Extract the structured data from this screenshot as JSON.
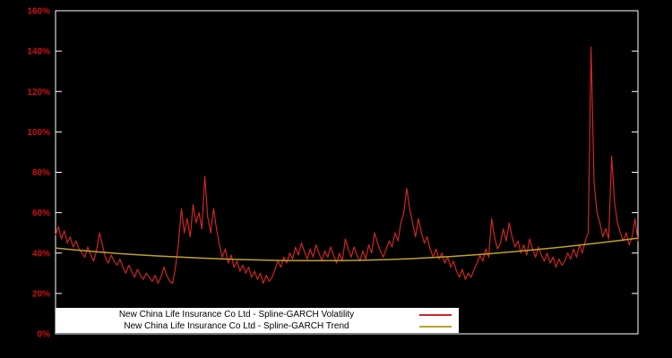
{
  "chart_data": {
    "type": "line",
    "title": "",
    "xlabel": "",
    "ylabel": "",
    "ylim": [
      0,
      160
    ],
    "grid": false,
    "legend_position": "bottom-left-inside",
    "background_color": "#000000",
    "border_color": "#ffffff",
    "tick_label_color": "#cc1111",
    "yticks": [
      {
        "value": 0,
        "label": "0%"
      },
      {
        "value": 20,
        "label": "20%"
      },
      {
        "value": 40,
        "label": "40%"
      },
      {
        "value": 60,
        "label": "60%"
      },
      {
        "value": 80,
        "label": "80%"
      },
      {
        "value": 100,
        "label": "100%"
      },
      {
        "value": 120,
        "label": "120%"
      },
      {
        "value": 140,
        "label": "140%"
      },
      {
        "value": 160,
        "label": "160%"
      }
    ],
    "series": [
      {
        "name": "New China Life Insurance Co Ltd - Spline-GARCH Volatility",
        "color": "#cd2626",
        "unit": "%",
        "values": [
          49,
          53,
          47,
          51,
          45,
          48,
          43,
          46,
          42,
          40,
          38,
          43,
          39,
          36,
          41,
          50,
          44,
          38,
          35,
          39,
          36,
          34,
          37,
          33,
          30,
          34,
          31,
          28,
          32,
          29,
          27,
          30,
          28,
          26,
          29,
          25,
          28,
          33,
          29,
          26,
          25,
          33,
          45,
          62,
          50,
          57,
          48,
          64,
          55,
          60,
          52,
          78,
          58,
          50,
          62,
          52,
          44,
          38,
          42,
          35,
          39,
          33,
          36,
          31,
          34,
          30,
          33,
          28,
          31,
          27,
          30,
          25,
          29,
          26,
          28,
          32,
          36,
          33,
          38,
          35,
          40,
          37,
          43,
          39,
          45,
          41,
          37,
          42,
          38,
          44,
          40,
          36,
          41,
          38,
          43,
          39,
          35,
          40,
          36,
          47,
          42,
          38,
          43,
          39,
          36,
          41,
          37,
          44,
          40,
          50,
          45,
          41,
          38,
          42,
          46,
          43,
          50,
          46,
          55,
          60,
          72,
          62,
          55,
          48,
          57,
          50,
          45,
          48,
          42,
          38,
          42,
          37,
          40,
          35,
          38,
          33,
          36,
          31,
          28,
          32,
          27,
          30,
          28,
          32,
          35,
          39,
          36,
          42,
          38,
          57,
          48,
          42,
          45,
          52,
          46,
          55,
          48,
          43,
          46,
          40,
          44,
          39,
          47,
          42,
          38,
          43,
          39,
          36,
          40,
          35,
          38,
          33,
          37,
          34,
          36,
          40,
          37,
          42,
          38,
          44,
          40,
          46,
          50,
          142,
          75,
          60,
          55,
          48,
          52,
          47,
          88,
          65,
          55,
          50,
          46,
          50,
          44,
          48,
          57,
          46
        ]
      },
      {
        "name": "New China Life Insurance Co Ltd - Spline-GARCH Trend",
        "color": "#bfa226",
        "unit": "%",
        "values": [
          42.5,
          41.5,
          40.6,
          39.8,
          39.1,
          38.5,
          38.0,
          37.5,
          37.1,
          36.8,
          36.5,
          36.3,
          36.2,
          36.2,
          36.3,
          36.5,
          36.8,
          37.2,
          37.7,
          38.3,
          39.0,
          39.8,
          40.7,
          41.6,
          42.6,
          43.7,
          44.9,
          46.1,
          47.4
        ]
      }
    ]
  }
}
